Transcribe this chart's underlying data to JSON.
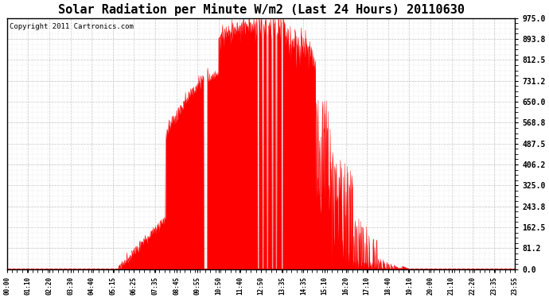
{
  "title": "Solar Radiation per Minute W/m2 (Last 24 Hours) 20110630",
  "copyright": "Copyright 2011 Cartronics.com",
  "y_ticks": [
    0.0,
    81.2,
    162.5,
    243.8,
    325.0,
    406.2,
    487.5,
    568.8,
    650.0,
    731.2,
    812.5,
    893.8,
    975.0
  ],
  "y_tick_labels": [
    "0.0",
    "81.2",
    "162.5",
    "243.8",
    "325.0",
    "406.2",
    "487.5",
    "568.8",
    "650.0",
    "731.2",
    "812.5",
    "893.8",
    "975.0"
  ],
  "ylim": [
    0.0,
    975.0
  ],
  "fill_color": "#FF0000",
  "line_color": "#FF0000",
  "background_color": "#FFFFFF",
  "plot_bg_color": "#FFFFFF",
  "grid_color": "#BBBBBB",
  "title_fontsize": 11,
  "copyright_fontsize": 6.5,
  "dashed_line_color": "#FF0000",
  "x_tick_labels": [
    "00:00",
    "01:10",
    "02:20",
    "03:30",
    "04:40",
    "05:15",
    "06:25",
    "07:35",
    "08:45",
    "09:55",
    "10:50",
    "11:40",
    "12:50",
    "13:35",
    "14:35",
    "15:10",
    "16:20",
    "17:10",
    "18:40",
    "19:10",
    "20:00",
    "21:10",
    "22:20",
    "23:35",
    "23:55"
  ]
}
